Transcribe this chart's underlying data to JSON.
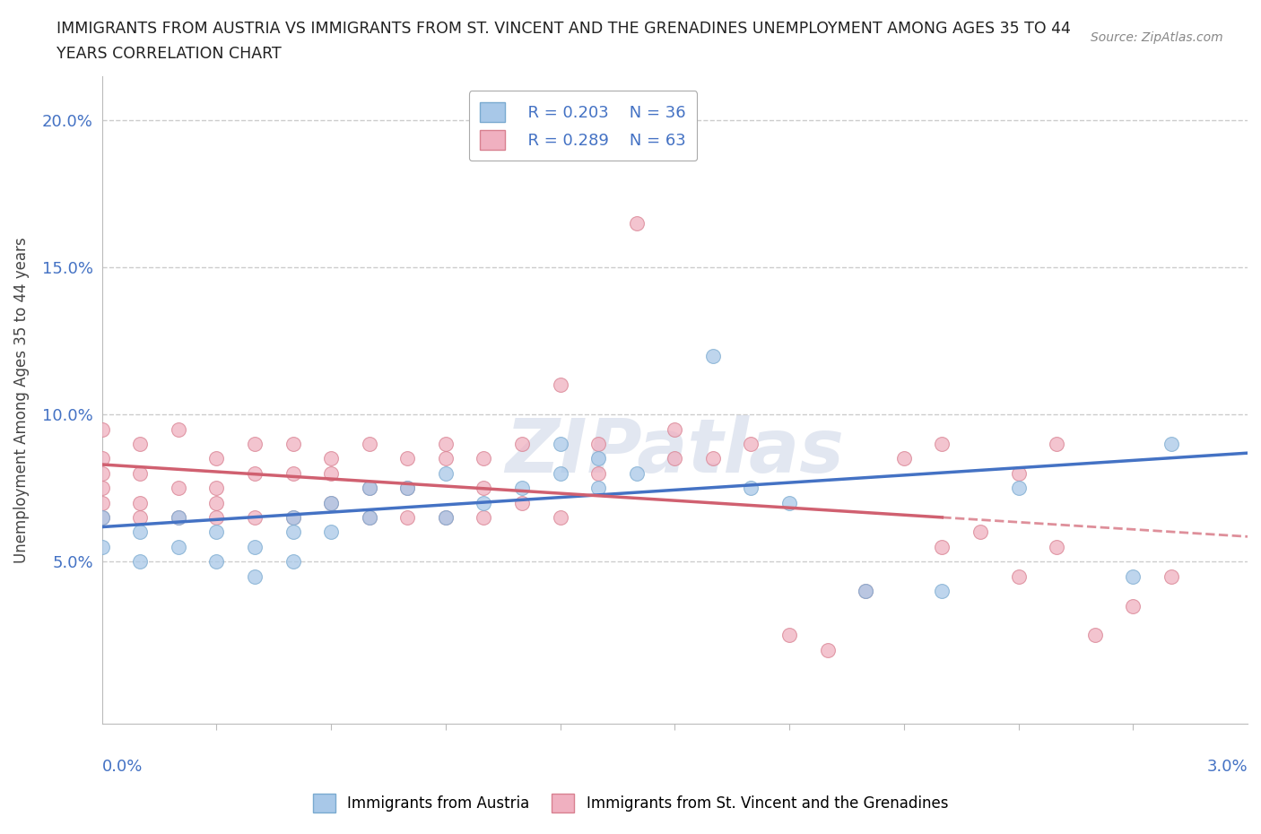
{
  "title_line1": "IMMIGRANTS FROM AUSTRIA VS IMMIGRANTS FROM ST. VINCENT AND THE GRENADINES UNEMPLOYMENT AMONG AGES 35 TO 44",
  "title_line2": "YEARS CORRELATION CHART",
  "source": "Source: ZipAtlas.com",
  "ylabel": "Unemployment Among Ages 35 to 44 years",
  "yticks": [
    0.0,
    0.05,
    0.1,
    0.15,
    0.2
  ],
  "ytick_labels": [
    "",
    "5.0%",
    "10.0%",
    "15.0%",
    "20.0%"
  ],
  "xlim": [
    0.0,
    0.03
  ],
  "ylim": [
    -0.005,
    0.215
  ],
  "watermark": "ZIPatlas",
  "legend_austria_r": "R = 0.203",
  "legend_austria_n": "N = 36",
  "legend_svg_r": "R = 0.289",
  "legend_svg_n": "N = 63",
  "austria_color": "#a8c8e8",
  "austria_edge_color": "#7aaad0",
  "svg_color": "#f0b0c0",
  "svg_edge_color": "#d88090",
  "austria_line_color": "#4472c4",
  "svg_line_color": "#d06070",
  "austria_scatter_x": [
    0.0,
    0.0,
    0.001,
    0.001,
    0.002,
    0.002,
    0.003,
    0.003,
    0.004,
    0.004,
    0.005,
    0.005,
    0.005,
    0.006,
    0.006,
    0.007,
    0.007,
    0.008,
    0.009,
    0.009,
    0.01,
    0.011,
    0.012,
    0.012,
    0.013,
    0.013,
    0.014,
    0.015,
    0.016,
    0.017,
    0.018,
    0.02,
    0.022,
    0.024,
    0.027,
    0.028
  ],
  "austria_scatter_y": [
    0.065,
    0.055,
    0.06,
    0.05,
    0.065,
    0.055,
    0.06,
    0.05,
    0.055,
    0.045,
    0.065,
    0.06,
    0.05,
    0.07,
    0.06,
    0.075,
    0.065,
    0.075,
    0.065,
    0.08,
    0.07,
    0.075,
    0.08,
    0.09,
    0.075,
    0.085,
    0.08,
    0.19,
    0.12,
    0.075,
    0.07,
    0.04,
    0.04,
    0.075,
    0.045,
    0.09
  ],
  "svg_scatter_x": [
    0.0,
    0.0,
    0.0,
    0.0,
    0.0,
    0.0,
    0.001,
    0.001,
    0.001,
    0.001,
    0.002,
    0.002,
    0.002,
    0.003,
    0.003,
    0.003,
    0.003,
    0.004,
    0.004,
    0.004,
    0.005,
    0.005,
    0.005,
    0.006,
    0.006,
    0.006,
    0.007,
    0.007,
    0.007,
    0.008,
    0.008,
    0.008,
    0.009,
    0.009,
    0.009,
    0.01,
    0.01,
    0.01,
    0.011,
    0.011,
    0.012,
    0.012,
    0.013,
    0.013,
    0.014,
    0.015,
    0.015,
    0.016,
    0.017,
    0.018,
    0.019,
    0.02,
    0.021,
    0.022,
    0.022,
    0.023,
    0.024,
    0.024,
    0.025,
    0.025,
    0.026,
    0.027,
    0.028
  ],
  "svg_scatter_y": [
    0.065,
    0.07,
    0.075,
    0.08,
    0.085,
    0.095,
    0.065,
    0.07,
    0.08,
    0.09,
    0.065,
    0.075,
    0.095,
    0.065,
    0.07,
    0.075,
    0.085,
    0.065,
    0.08,
    0.09,
    0.065,
    0.08,
    0.09,
    0.07,
    0.08,
    0.085,
    0.065,
    0.075,
    0.09,
    0.065,
    0.075,
    0.085,
    0.065,
    0.085,
    0.09,
    0.065,
    0.075,
    0.085,
    0.07,
    0.09,
    0.065,
    0.11,
    0.08,
    0.09,
    0.165,
    0.085,
    0.095,
    0.085,
    0.09,
    0.025,
    0.02,
    0.04,
    0.085,
    0.09,
    0.055,
    0.06,
    0.045,
    0.08,
    0.09,
    0.055,
    0.025,
    0.035,
    0.045
  ],
  "svg_line_x_end": 0.022
}
